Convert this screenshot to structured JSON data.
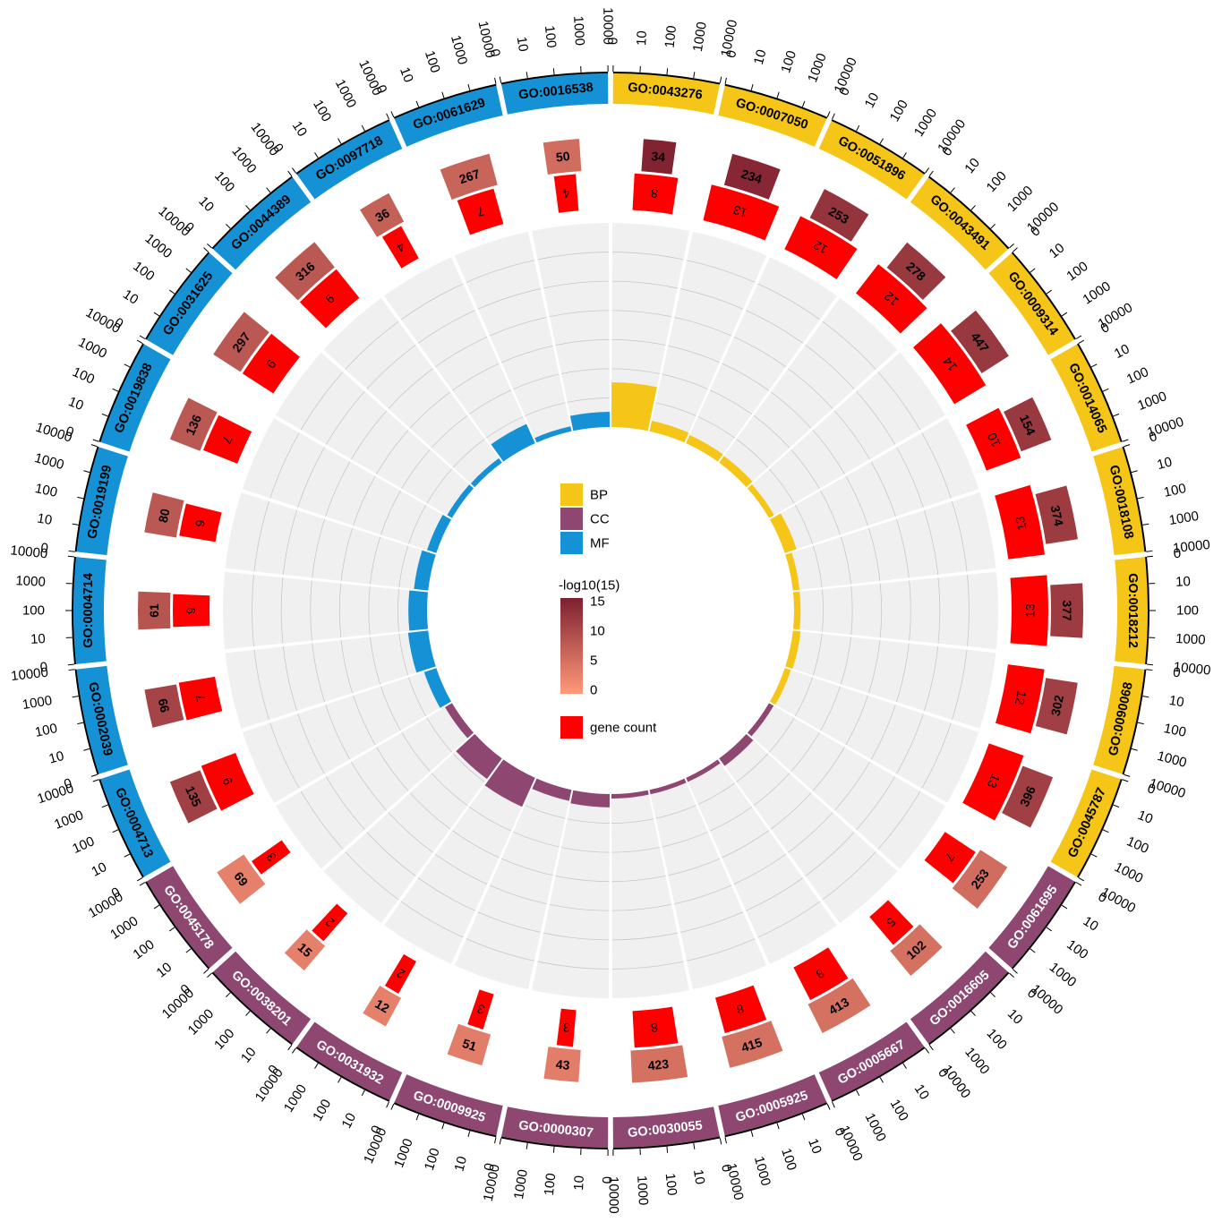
{
  "chart_data": {
    "type": "circos",
    "scale_ticks": [
      "0",
      "10",
      "100",
      "1000",
      "10000"
    ],
    "scale_max": 10000,
    "count_max": 16,
    "categories": [
      {
        "name": "BP",
        "color": "#F5C518",
        "text_color": "#000000"
      },
      {
        "name": "CC",
        "color": "#8E4770",
        "text_color": "#ffffff"
      },
      {
        "name": "MF",
        "color": "#1592D6",
        "text_color": "#000000"
      }
    ],
    "terms": [
      {
        "id": "GO:0043276",
        "category": "BP",
        "bg_genes": 34,
        "gene_count": 8,
        "log_p": 14.5,
        "rich_factor": 0.235
      },
      {
        "id": "GO:0007050",
        "category": "BP",
        "bg_genes": 234,
        "gene_count": 13,
        "log_p": 14.0,
        "rich_factor": 0.056
      },
      {
        "id": "GO:0051896",
        "category": "BP",
        "bg_genes": 253,
        "gene_count": 12,
        "log_p": 12.5,
        "rich_factor": 0.047
      },
      {
        "id": "GO:0043491",
        "category": "BP",
        "bg_genes": 278,
        "gene_count": 12,
        "log_p": 12.0,
        "rich_factor": 0.043
      },
      {
        "id": "GO:0009314",
        "category": "BP",
        "bg_genes": 447,
        "gene_count": 14,
        "log_p": 12.0,
        "rich_factor": 0.031
      },
      {
        "id": "GO:0014065",
        "category": "BP",
        "bg_genes": 154,
        "gene_count": 10,
        "log_p": 12.0,
        "rich_factor": 0.065
      },
      {
        "id": "GO:0018108",
        "category": "BP",
        "bg_genes": 374,
        "gene_count": 13,
        "log_p": 11.5,
        "rich_factor": 0.035
      },
      {
        "id": "GO:0018212",
        "category": "BP",
        "bg_genes": 377,
        "gene_count": 13,
        "log_p": 11.5,
        "rich_factor": 0.034
      },
      {
        "id": "GO:0090068",
        "category": "BP",
        "bg_genes": 302,
        "gene_count": 12,
        "log_p": 11.0,
        "rich_factor": 0.04
      },
      {
        "id": "GO:0045787",
        "category": "BP",
        "bg_genes": 396,
        "gene_count": 13,
        "log_p": 11.0,
        "rich_factor": 0.033
      },
      {
        "id": "GO:0061695",
        "category": "CC",
        "bg_genes": 253,
        "gene_count": 7,
        "log_p": 5.5,
        "rich_factor": 0.028
      },
      {
        "id": "GO:0016605",
        "category": "CC",
        "bg_genes": 102,
        "gene_count": 5,
        "log_p": 5.0,
        "rich_factor": 0.049
      },
      {
        "id": "GO:0005667",
        "category": "CC",
        "bg_genes": 413,
        "gene_count": 8,
        "log_p": 5.0,
        "rich_factor": 0.019
      },
      {
        "id": "GO:0005925",
        "category": "CC",
        "bg_genes": 415,
        "gene_count": 8,
        "log_p": 5.0,
        "rich_factor": 0.019
      },
      {
        "id": "GO:0030055",
        "category": "CC",
        "bg_genes": 423,
        "gene_count": 8,
        "log_p": 5.0,
        "rich_factor": 0.019
      },
      {
        "id": "GO:0000307",
        "category": "CC",
        "bg_genes": 43,
        "gene_count": 3,
        "log_p": 3.5,
        "rich_factor": 0.07
      },
      {
        "id": "GO:0009925",
        "category": "CC",
        "bg_genes": 51,
        "gene_count": 3,
        "log_p": 3.5,
        "rich_factor": 0.059
      },
      {
        "id": "GO:0031932",
        "category": "CC",
        "bg_genes": 12,
        "gene_count": 2,
        "log_p": 3.0,
        "rich_factor": 0.167
      },
      {
        "id": "GO:0038201",
        "category": "CC",
        "bg_genes": 15,
        "gene_count": 2,
        "log_p": 3.0,
        "rich_factor": 0.133
      },
      {
        "id": "GO:0045178",
        "category": "CC",
        "bg_genes": 69,
        "gene_count": 3,
        "log_p": 3.0,
        "rich_factor": 0.043
      },
      {
        "id": "GO:0004713",
        "category": "MF",
        "bg_genes": 135,
        "gene_count": 9,
        "log_p": 11.0,
        "rich_factor": 0.067
      },
      {
        "id": "GO:0002039",
        "category": "MF",
        "bg_genes": 66,
        "gene_count": 7,
        "log_p": 10.5,
        "rich_factor": 0.106
      },
      {
        "id": "GO:0004714",
        "category": "MF",
        "bg_genes": 61,
        "gene_count": 6,
        "log_p": 8.5,
        "rich_factor": 0.098
      },
      {
        "id": "GO:0019199",
        "category": "MF",
        "bg_genes": 80,
        "gene_count": 6,
        "log_p": 8.0,
        "rich_factor": 0.075
      },
      {
        "id": "GO:0019838",
        "category": "MF",
        "bg_genes": 136,
        "gene_count": 7,
        "log_p": 8.0,
        "rich_factor": 0.051
      },
      {
        "id": "GO:0031625",
        "category": "MF",
        "bg_genes": 297,
        "gene_count": 9,
        "log_p": 8.0,
        "rich_factor": 0.03
      },
      {
        "id": "GO:0044389",
        "category": "MF",
        "bg_genes": 316,
        "gene_count": 9,
        "log_p": 8.0,
        "rich_factor": 0.028
      },
      {
        "id": "GO:0097718",
        "category": "MF",
        "bg_genes": 36,
        "gene_count": 4,
        "log_p": 7.0,
        "rich_factor": 0.111
      },
      {
        "id": "GO:0061629",
        "category": "MF",
        "bg_genes": 267,
        "gene_count": 7,
        "log_p": 6.5,
        "rich_factor": 0.026
      },
      {
        "id": "GO:0016538",
        "category": "MF",
        "bg_genes": 50,
        "gene_count": 4,
        "log_p": 5.5,
        "rich_factor": 0.08
      }
    ],
    "legend": {
      "categories_title": "",
      "gradient_title": "-log10(15)",
      "gradient_ticks": [
        "15",
        "10",
        "5",
        "0"
      ],
      "gradient_min": 0,
      "gradient_max": 15,
      "gradient_colors": [
        "#FF9A7A",
        "#7E1F30"
      ],
      "gene_count_label": "gene count",
      "gene_count_color": "#FF0000"
    }
  }
}
